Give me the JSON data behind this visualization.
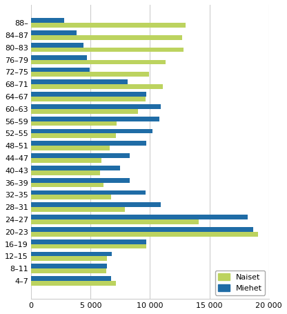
{
  "categories": [
    "88–",
    "84–87",
    "80–83",
    "76–79",
    "72–75",
    "68–71",
    "64–67",
    "60–63",
    "56–59",
    "52–55",
    "48–51",
    "44–47",
    "40–43",
    "36–39",
    "32–35",
    "28–31",
    "24–27",
    "20–23",
    "16–19",
    "12–15",
    "8–11",
    "4–7"
  ],
  "naiset": [
    13000,
    12700,
    12800,
    11300,
    9900,
    11100,
    9600,
    9000,
    7200,
    7100,
    6600,
    5900,
    5800,
    6100,
    6700,
    7900,
    14100,
    19100,
    9700,
    6400,
    6300,
    7100
  ],
  "miehet": [
    2800,
    3800,
    4400,
    4700,
    4900,
    8100,
    9700,
    10900,
    10800,
    10200,
    9700,
    8300,
    7500,
    8300,
    9600,
    10900,
    18200,
    18700,
    9700,
    6800,
    6400,
    6700
  ],
  "naiset_color": "#bcd35f",
  "miehet_color": "#1f6ca6",
  "xlim": [
    0,
    20000
  ],
  "xticks": [
    0,
    5000,
    10000,
    15000,
    20000
  ],
  "xticklabels": [
    "0",
    "5 000",
    "10 000",
    "15 000",
    "20 000"
  ],
  "background_color": "#ffffff",
  "grid_color": "#cccccc",
  "legend_labels": [
    "Naiset",
    "Miehet"
  ],
  "bar_height": 0.38,
  "fontsize": 8
}
